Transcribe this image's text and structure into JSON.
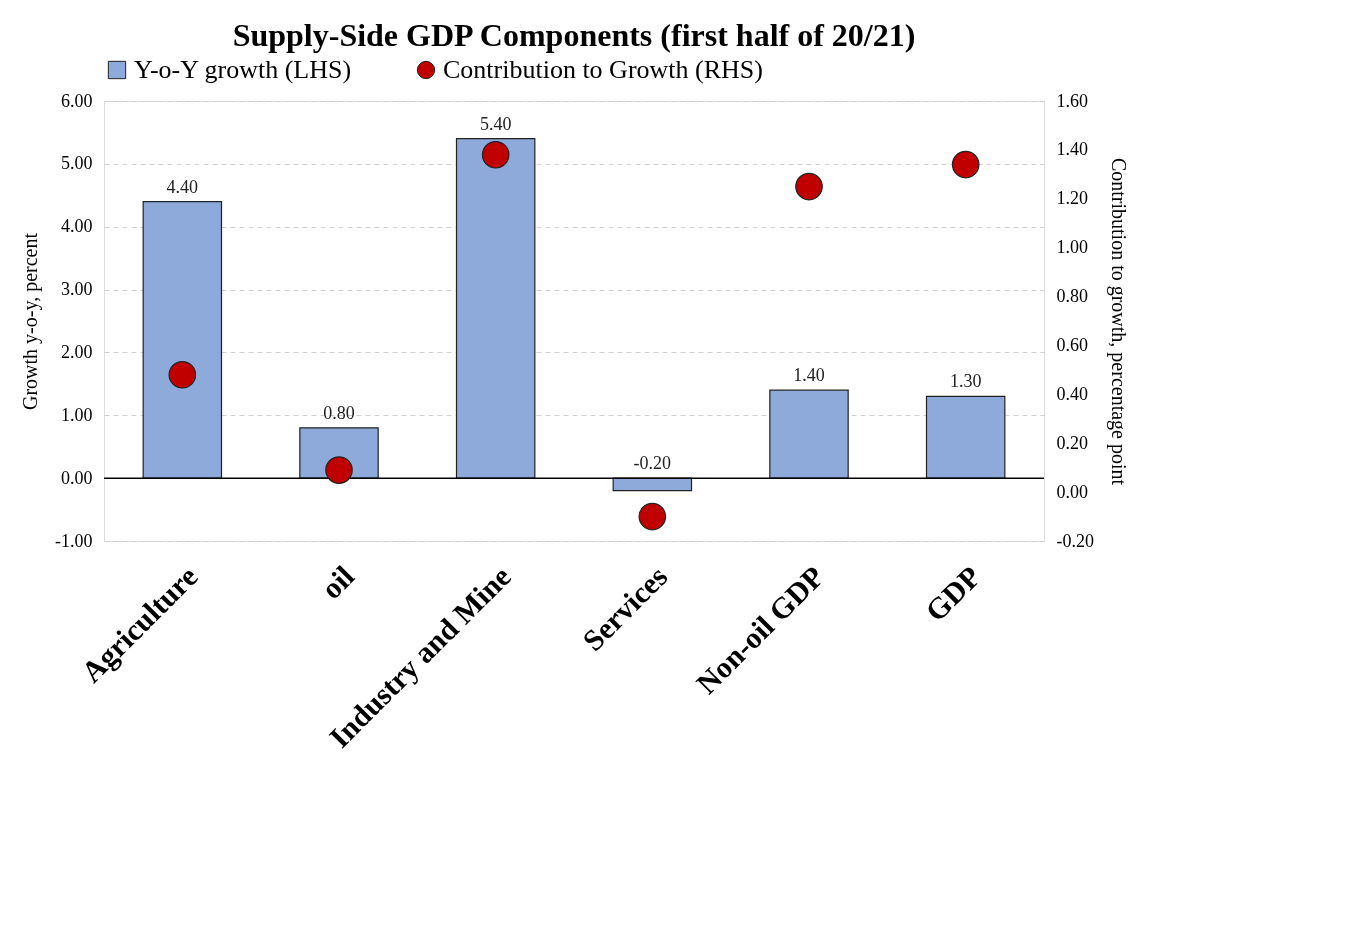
{
  "chart_data": {
    "type": "bar",
    "title": "Supply-Side GDP Components (first half of 20/21)",
    "categories": [
      "Agriculture",
      "oil",
      "Industry and Mine",
      "Services",
      "Non-oil GDP",
      "GDP"
    ],
    "series": [
      {
        "name": "Y-o-Y growth (LHS)",
        "color": "#8eaadb",
        "values": [
          4.4,
          0.8,
          5.4,
          -0.2,
          1.4,
          1.3
        ],
        "value_labels": [
          "4.40",
          "0.80",
          "5.40",
          "-0.20",
          "1.40",
          "1.30"
        ]
      },
      {
        "name": "Contribution to Growth (RHS)",
        "type": "scatter",
        "axis": "y2",
        "color": "#c00000",
        "marker": "circle",
        "values": [
          0.48,
          0.09,
          1.38,
          -0.1,
          1.25,
          1.34
        ]
      }
    ],
    "ylabel": "Growth y-o-y, percent",
    "y2label": "Contribution to growth, percentage point",
    "ylim": [
      -1,
      6
    ],
    "yticks": [
      {
        "value": -1,
        "label": "-1.00"
      },
      {
        "value": 0,
        "label": "0.00"
      },
      {
        "value": 1,
        "label": "1.00"
      },
      {
        "value": 2,
        "label": "2.00"
      },
      {
        "value": 3,
        "label": "3.00"
      },
      {
        "value": 4,
        "label": "4.00"
      },
      {
        "value": 5,
        "label": "5.00"
      },
      {
        "value": 6,
        "label": "6.00"
      }
    ],
    "y2lim": [
      -0.2,
      1.6
    ],
    "y2ticks": [
      {
        "value": -0.2,
        "label": "-0.20"
      },
      {
        "value": 0,
        "label": "0.00"
      },
      {
        "value": 0.2,
        "label": "0.20"
      },
      {
        "value": 0.4,
        "label": "0.40"
      },
      {
        "value": 0.6,
        "label": "0.60"
      },
      {
        "value": 0.8,
        "label": "0.80"
      },
      {
        "value": 1.0,
        "label": "1.00"
      },
      {
        "value": 1.2,
        "label": "1.20"
      },
      {
        "value": 1.4,
        "label": "1.40"
      },
      {
        "value": 1.6,
        "label": "1.60"
      }
    ],
    "grid": "y",
    "legend": "top"
  }
}
